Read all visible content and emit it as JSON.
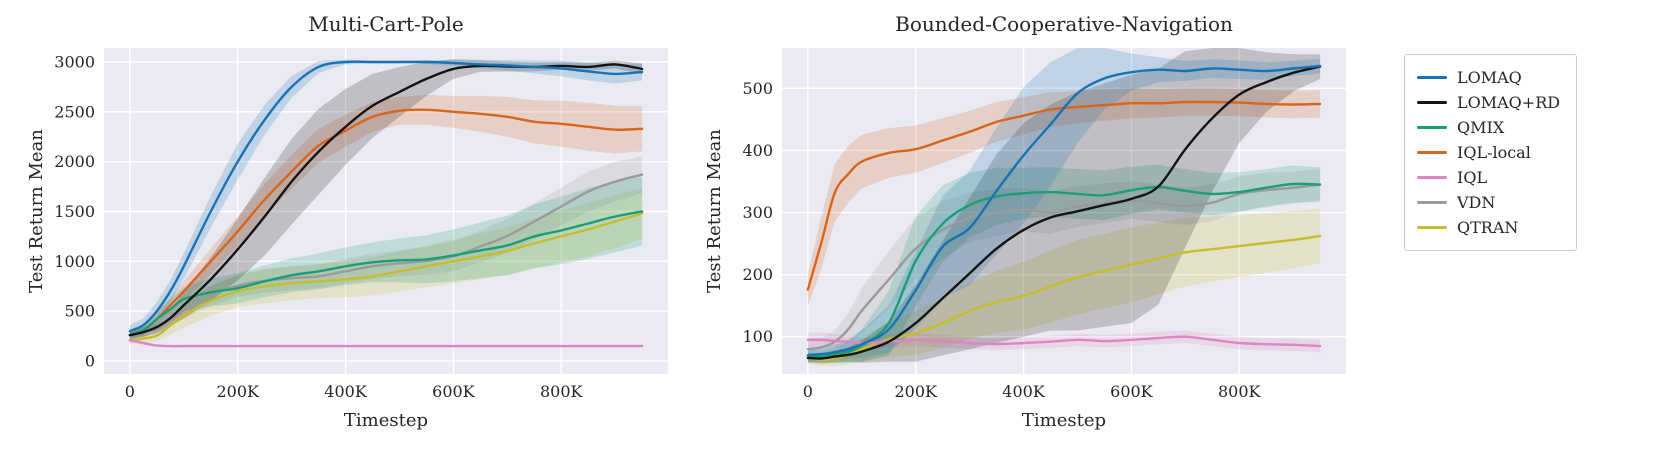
{
  "figure": {
    "background": "#ffffff",
    "axes_background": "#eaeaf2",
    "grid_color": "#ffffff"
  },
  "legend": {
    "entries": [
      {
        "label": "LOMAQ",
        "color": "#1873b5"
      },
      {
        "label": "LOMAQ+RD",
        "color": "#141414"
      },
      {
        "label": "QMIX",
        "color": "#1b9e77"
      },
      {
        "label": "IQL-local",
        "color": "#d9641c"
      },
      {
        "label": "IQL",
        "color": "#dd85c3"
      },
      {
        "label": "VDN",
        "color": "#9a9a9a"
      },
      {
        "label": "QTRAN",
        "color": "#c6bd2a"
      }
    ]
  },
  "chart_data": [
    {
      "type": "line",
      "title": "Multi-Cart-Pole",
      "xlabel": "Timestep",
      "ylabel": "Test Return Mean",
      "x_units": "thousand timesteps",
      "xlim": [
        -48,
        998
      ],
      "ylim": [
        -130,
        3140
      ],
      "xticks": [
        0,
        200,
        400,
        600,
        800
      ],
      "xtick_labels": [
        "0",
        "200K",
        "400K",
        "600K",
        "800K"
      ],
      "yticks": [
        0,
        500,
        1000,
        1500,
        2000,
        2500,
        3000
      ],
      "ytick_labels": [
        "0",
        "500",
        "1000",
        "1500",
        "2000",
        "2500",
        "3000"
      ],
      "grid": true,
      "x": [
        0,
        25,
        50,
        75,
        100,
        150,
        200,
        250,
        300,
        350,
        400,
        450,
        500,
        550,
        600,
        650,
        700,
        750,
        800,
        850,
        900,
        950
      ],
      "series": [
        {
          "name": "LOMAQ",
          "color": "#1873b5",
          "y": [
            300,
            360,
            500,
            700,
            950,
            1500,
            2000,
            2420,
            2750,
            2950,
            3000,
            3000,
            3000,
            3000,
            2990,
            2975,
            2965,
            2950,
            2935,
            2905,
            2880,
            2900
          ],
          "spread": [
            60,
            70,
            90,
            110,
            130,
            160,
            180,
            150,
            110,
            60,
            25,
            15,
            15,
            20,
            30,
            40,
            55,
            65,
            80,
            90,
            95,
            85
          ]
        },
        {
          "name": "LOMAQ+RD",
          "color": "#141414",
          "y": [
            260,
            290,
            340,
            430,
            560,
            820,
            1120,
            1450,
            1800,
            2100,
            2350,
            2560,
            2700,
            2830,
            2930,
            2960,
            2955,
            2950,
            2960,
            2950,
            2975,
            2930
          ],
          "spread": [
            40,
            50,
            60,
            80,
            130,
            220,
            310,
            390,
            430,
            430,
            380,
            320,
            250,
            170,
            100,
            60,
            50,
            45,
            40,
            40,
            40,
            55
          ]
        },
        {
          "name": "QMIX",
          "color": "#1b9e77",
          "y": [
            260,
            310,
            420,
            520,
            620,
            690,
            730,
            800,
            860,
            900,
            950,
            990,
            1010,
            1020,
            1060,
            1110,
            1160,
            1250,
            1310,
            1380,
            1450,
            1500
          ],
          "spread": [
            50,
            60,
            80,
            100,
            120,
            140,
            150,
            160,
            170,
            180,
            190,
            200,
            220,
            240,
            260,
            280,
            300,
            320,
            340,
            355,
            360,
            345
          ]
        },
        {
          "name": "IQL-local",
          "color": "#d9641c",
          "y": [
            260,
            310,
            420,
            560,
            700,
            1000,
            1300,
            1620,
            1900,
            2160,
            2310,
            2450,
            2510,
            2520,
            2500,
            2480,
            2450,
            2400,
            2380,
            2350,
            2320,
            2330
          ],
          "spread": [
            40,
            50,
            60,
            80,
            100,
            130,
            150,
            160,
            170,
            170,
            160,
            150,
            140,
            150,
            160,
            180,
            200,
            215,
            230,
            240,
            240,
            225
          ]
        },
        {
          "name": "IQL",
          "color": "#dd85c3",
          "y": [
            210,
            180,
            155,
            150,
            150,
            150,
            150,
            150,
            150,
            150,
            150,
            150,
            150,
            150,
            150,
            150,
            150,
            150,
            150,
            150,
            150,
            150
          ],
          "spread": [
            25,
            15,
            8,
            5,
            5,
            5,
            5,
            5,
            5,
            5,
            5,
            5,
            5,
            5,
            5,
            5,
            5,
            5,
            5,
            5,
            5,
            5
          ]
        },
        {
          "name": "VDN",
          "color": "#9a9a9a",
          "y": [
            260,
            285,
            325,
            405,
            505,
            655,
            755,
            805,
            830,
            850,
            900,
            950,
            980,
            1005,
            1050,
            1150,
            1255,
            1400,
            1550,
            1700,
            1800,
            1870
          ],
          "spread": [
            35,
            40,
            50,
            60,
            80,
            100,
            110,
            120,
            120,
            120,
            120,
            130,
            130,
            140,
            150,
            160,
            170,
            180,
            190,
            200,
            200,
            185
          ]
        },
        {
          "name": "QTRAN",
          "color": "#c6bd2a",
          "y": [
            205,
            225,
            255,
            355,
            455,
            605,
            700,
            750,
            780,
            800,
            820,
            850,
            900,
            950,
            1000,
            1050,
            1105,
            1180,
            1250,
            1320,
            1400,
            1480
          ],
          "spread": [
            30,
            40,
            60,
            90,
            120,
            150,
            160,
            170,
            170,
            170,
            180,
            190,
            200,
            210,
            220,
            230,
            240,
            250,
            260,
            268,
            268,
            255
          ]
        }
      ]
    },
    {
      "type": "line",
      "title": "Bounded-Cooperative-Navigation",
      "xlabel": "Timestep",
      "ylabel": "Test Return Mean",
      "x_units": "thousand timesteps",
      "xlim": [
        -48,
        998
      ],
      "ylim": [
        40,
        565
      ],
      "xticks": [
        0,
        200,
        400,
        600,
        800
      ],
      "xtick_labels": [
        "0",
        "200K",
        "400K",
        "600K",
        "800K"
      ],
      "yticks": [
        100,
        200,
        300,
        400,
        500
      ],
      "ytick_labels": [
        "100",
        "200",
        "300",
        "400",
        "500"
      ],
      "grid": true,
      "x": [
        0,
        25,
        50,
        75,
        100,
        150,
        200,
        250,
        300,
        350,
        400,
        450,
        500,
        550,
        600,
        650,
        700,
        750,
        800,
        850,
        900,
        950
      ],
      "series": [
        {
          "name": "LOMAQ",
          "color": "#1873b5",
          "y": [
            70,
            72,
            75,
            80,
            88,
            112,
            175,
            245,
            275,
            335,
            392,
            442,
            492,
            516,
            526,
            530,
            528,
            532,
            530,
            528,
            532,
            536
          ],
          "spread": [
            10,
            10,
            12,
            15,
            22,
            38,
            62,
            82,
            92,
            102,
            110,
            100,
            80,
            50,
            30,
            20,
            16,
            15,
            15,
            14,
            12,
            12
          ]
        },
        {
          "name": "LOMAQ+RD",
          "color": "#141414",
          "y": [
            66,
            65,
            68,
            71,
            76,
            92,
            122,
            162,
            202,
            242,
            272,
            292,
            302,
            312,
            322,
            342,
            402,
            452,
            490,
            510,
            525,
            535
          ],
          "spread": [
            8,
            8,
            10,
            12,
            18,
            32,
            62,
            92,
            122,
            152,
            172,
            182,
            192,
            196,
            200,
            190,
            158,
            118,
            78,
            48,
            30,
            20
          ]
        },
        {
          "name": "QMIX",
          "color": "#1b9e77",
          "y": [
            70,
            68,
            71,
            76,
            86,
            122,
            222,
            282,
            312,
            326,
            331,
            333,
            330,
            328,
            336,
            341,
            335,
            330,
            333,
            340,
            346,
            345
          ],
          "spread": [
            10,
            10,
            12,
            16,
            26,
            52,
            72,
            62,
            52,
            46,
            41,
            40,
            40,
            40,
            38,
            36,
            35,
            34,
            32,
            30,
            30,
            28
          ]
        },
        {
          "name": "IQL-local",
          "color": "#d9641c",
          "y": [
            176,
            252,
            332,
            362,
            382,
            396,
            402,
            416,
            430,
            446,
            456,
            466,
            470,
            473,
            476,
            476,
            478,
            478,
            477,
            475,
            474,
            475
          ],
          "spread": [
            26,
            42,
            46,
            46,
            43,
            40,
            38,
            36,
            34,
            32,
            30,
            28,
            26,
            25,
            24,
            23,
            22,
            22,
            22,
            22,
            22,
            22
          ]
        },
        {
          "name": "IQL",
          "color": "#dd85c3",
          "y": [
            95,
            95,
            93,
            92,
            90,
            92,
            95,
            93,
            90,
            88,
            90,
            92,
            95,
            93,
            95,
            98,
            100,
            95,
            90,
            88,
            87,
            85
          ],
          "spread": [
            12,
            12,
            11,
            10,
            10,
            10,
            10,
            10,
            10,
            10,
            10,
            10,
            10,
            10,
            10,
            10,
            10,
            10,
            10,
            10,
            10,
            10
          ]
        },
        {
          "name": "VDN",
          "color": "#9a9a9a",
          "y": [
            80,
            83,
            92,
            112,
            142,
            192,
            242,
            272,
            292,
            300,
            305,
            300,
            310,
            315,
            320,
            315,
            310,
            316,
            330,
            336,
            340,
            345
          ],
          "spread": [
            12,
            14,
            18,
            26,
            36,
            46,
            50,
            46,
            40,
            38,
            35,
            34,
            33,
            32,
            30,
            30,
            30,
            30,
            28,
            28,
            26,
            25
          ]
        },
        {
          "name": "QTRAN",
          "color": "#c6bd2a",
          "y": [
            66,
            63,
            65,
            70,
            80,
            96,
            106,
            122,
            142,
            156,
            166,
            181,
            196,
            206,
            216,
            226,
            236,
            241,
            246,
            251,
            256,
            262
          ],
          "spread": [
            10,
            10,
            12,
            15,
            20,
            28,
            35,
            40,
            45,
            50,
            55,
            58,
            60,
            60,
            60,
            58,
            55,
            52,
            50,
            48,
            46,
            44
          ]
        }
      ]
    }
  ]
}
